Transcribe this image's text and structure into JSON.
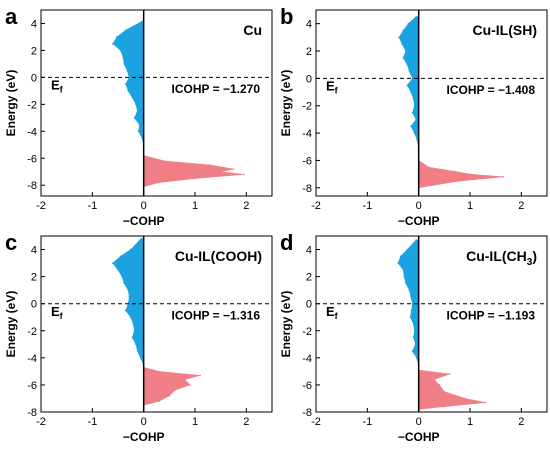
{
  "figure": {
    "colors": {
      "negative": "#1aa3e0",
      "positive": "#f07e87",
      "frame": "#000000"
    }
  },
  "chart_data": [
    {
      "type": "area",
      "panel": "a",
      "label": "Cu",
      "annotation": "ICOHP = −1.270",
      "fermi_label": "E",
      "fermi_sub": "f",
      "xlabel": "−COHP",
      "ylabel": "Energy (eV)",
      "xlim": [
        -2,
        2.5
      ],
      "ylim": [
        -8.8,
        5
      ],
      "xticks": [
        "-2",
        "-1",
        "0",
        "1",
        "2"
      ],
      "yticks": [
        "-8",
        "-6",
        "-4",
        "-2",
        "0",
        "2",
        "4"
      ],
      "fermi_level": 0,
      "series": [
        {
          "side": "negative",
          "energy": [
            4.2,
            3.5,
            3.0,
            2.5,
            2.0,
            1.5,
            1.0,
            0.5,
            0.0,
            -0.5,
            -1.0,
            -1.5,
            -2.0,
            -2.5,
            -3.0,
            -3.5,
            -4.0,
            -4.5,
            -5.0
          ],
          "cohp": [
            -0.01,
            -0.35,
            -0.52,
            -0.6,
            -0.45,
            -0.4,
            -0.38,
            -0.32,
            -0.28,
            -0.35,
            -0.3,
            -0.22,
            -0.15,
            -0.12,
            -0.18,
            -0.08,
            -0.1,
            -0.03,
            0.0
          ]
        },
        {
          "side": "positive",
          "energy": [
            -5.8,
            -6.2,
            -6.5,
            -6.8,
            -7.0,
            -7.2,
            -7.5,
            -7.8,
            -8.1
          ],
          "cohp": [
            0.0,
            0.4,
            1.3,
            1.75,
            1.5,
            1.95,
            1.0,
            0.3,
            0.0
          ]
        }
      ]
    },
    {
      "type": "area",
      "panel": "b",
      "label": "Cu-IL(SH)",
      "annotation": "ICOHP = −1.408",
      "fermi_label": "E",
      "fermi_sub": "f",
      "xlabel": "−COHP",
      "ylabel": "Energy (eV)",
      "xlim": [
        -2,
        2.5
      ],
      "ylim": [
        -8.6,
        5
      ],
      "xticks": [
        "-2",
        "-1",
        "0",
        "1",
        "2"
      ],
      "yticks": [
        "-8",
        "-6",
        "-4",
        "-2",
        "0",
        "2",
        "4"
      ],
      "fermi_level": 0,
      "series": [
        {
          "side": "negative",
          "energy": [
            4.5,
            4.0,
            3.5,
            3.0,
            2.5,
            2.0,
            1.5,
            1.0,
            0.5,
            0.0,
            -0.5,
            -1.0,
            -1.5,
            -2.0,
            -2.5,
            -3.0,
            -3.5,
            -4.0,
            -4.5,
            -5.0
          ],
          "cohp": [
            -0.05,
            -0.2,
            -0.3,
            -0.38,
            -0.32,
            -0.25,
            -0.3,
            -0.22,
            -0.18,
            -0.12,
            -0.22,
            -0.15,
            -0.1,
            -0.08,
            -0.12,
            -0.05,
            -0.15,
            -0.08,
            -0.03,
            0.0
          ]
        },
        {
          "side": "positive",
          "energy": [
            -6.0,
            -6.5,
            -6.8,
            -7.0,
            -7.2,
            -7.5,
            -7.8,
            -8.0
          ],
          "cohp": [
            0.0,
            0.2,
            0.7,
            1.0,
            1.65,
            0.8,
            0.3,
            0.0
          ]
        }
      ]
    },
    {
      "type": "area",
      "panel": "c",
      "label": "Cu-IL(COOH)",
      "annotation": "ICOHP = −1.316",
      "fermi_label": "E",
      "fermi_sub": "f",
      "xlabel": "−COHP",
      "ylabel": "Energy (eV)",
      "xlim": [
        -2,
        2.5
      ],
      "ylim": [
        -8,
        5
      ],
      "xticks": [
        "-2",
        "-1",
        "0",
        "1",
        "2"
      ],
      "yticks": [
        "-8",
        "-6",
        "-4",
        "-2",
        "0",
        "2",
        "4"
      ],
      "fermi_level": 0,
      "series": [
        {
          "side": "negative",
          "energy": [
            4.8,
            4.0,
            3.5,
            3.0,
            2.5,
            2.0,
            1.5,
            1.0,
            0.5,
            0.0,
            -0.5,
            -1.0,
            -1.5,
            -2.0,
            -2.5,
            -3.0,
            -3.5,
            -4.0,
            -4.5
          ],
          "cohp": [
            -0.05,
            -0.25,
            -0.45,
            -0.6,
            -0.5,
            -0.42,
            -0.38,
            -0.3,
            -0.28,
            -0.3,
            -0.35,
            -0.25,
            -0.2,
            -0.18,
            -0.22,
            -0.15,
            -0.12,
            -0.06,
            0.0
          ]
        },
        {
          "side": "positive",
          "energy": [
            -4.7,
            -5.0,
            -5.3,
            -5.6,
            -6.0,
            -6.4,
            -6.8,
            -7.2,
            -7.5
          ],
          "cohp": [
            0.0,
            0.3,
            1.1,
            0.8,
            0.9,
            0.6,
            0.5,
            0.3,
            0.0
          ]
        }
      ]
    },
    {
      "type": "area",
      "panel": "d",
      "label_main": "Cu-IL(CH",
      "label_sub": "3",
      "label_end": ")",
      "annotation": "ICOHP = −1.193",
      "fermi_label": "E",
      "fermi_sub": "f",
      "xlabel": "−COHP",
      "ylabel": "Energy (eV)",
      "xlim": [
        -2,
        2.5
      ],
      "ylim": [
        -8,
        5
      ],
      "xticks": [
        "-2",
        "-1",
        "0",
        "1",
        "2"
      ],
      "yticks": [
        "-8",
        "-6",
        "-4",
        "-2",
        "0",
        "2",
        "4"
      ],
      "fermi_level": 0,
      "series": [
        {
          "side": "negative",
          "energy": [
            4.7,
            4.0,
            3.5,
            3.0,
            2.5,
            2.0,
            1.5,
            1.0,
            0.5,
            0.0,
            -0.5,
            -1.0,
            -1.5,
            -2.0,
            -2.5,
            -3.0,
            -3.5,
            -4.0,
            -4.5
          ],
          "cohp": [
            -0.05,
            -0.22,
            -0.35,
            -0.4,
            -0.3,
            -0.28,
            -0.25,
            -0.18,
            -0.15,
            -0.12,
            -0.14,
            -0.16,
            -0.1,
            -0.08,
            -0.1,
            -0.06,
            -0.12,
            -0.04,
            0.0
          ]
        },
        {
          "side": "positive",
          "energy": [
            -4.9,
            -5.2,
            -5.6,
            -6.0,
            -6.5,
            -7.0,
            -7.3,
            -7.6,
            -7.8
          ],
          "cohp": [
            0.0,
            0.6,
            0.3,
            0.4,
            0.5,
            0.9,
            1.3,
            0.5,
            0.0
          ]
        }
      ]
    }
  ]
}
